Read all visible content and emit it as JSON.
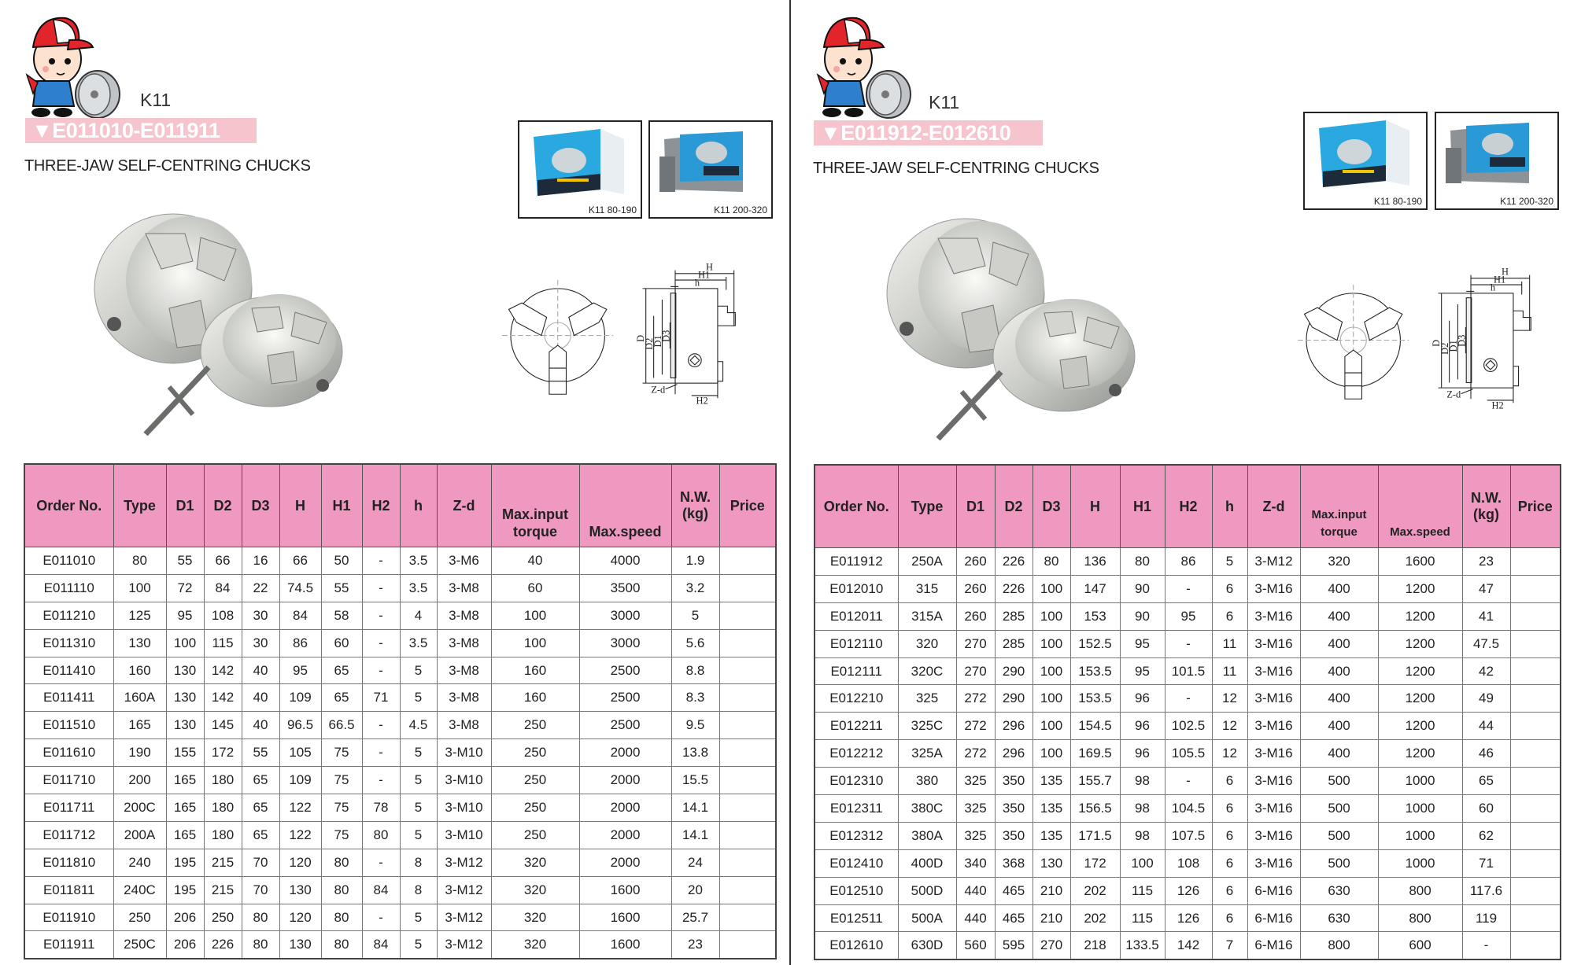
{
  "colors": {
    "header_pink": "#ef98c0",
    "banner_pink": "#f5c4cd",
    "divider": "#333333"
  },
  "pages": [
    {
      "series": "K11",
      "banner": "▼E011010-E011911",
      "subtitle": "THREE-JAW SELF-CENTRING CHUCKS",
      "boxes": [
        {
          "caption": "K11 80-190"
        },
        {
          "caption": "K11 200-320"
        }
      ],
      "drawing_labels": {
        "H": "H",
        "H1": "H1",
        "h": "h",
        "D": "D",
        "D2": "D2",
        "D1": "D1",
        "D3": "D3",
        "Zd": "Z-d",
        "H2": "H2"
      },
      "table": {
        "headers": [
          "Order No.",
          "Type",
          "D1",
          "D2",
          "D3",
          "H",
          "H1",
          "H2",
          "h",
          "Z-d",
          "Max.input torque",
          "Max.speed",
          "N.W. (kg)",
          "Price"
        ],
        "rows": [
          [
            "E011010",
            "80",
            "55",
            "66",
            "16",
            "66",
            "50",
            "-",
            "3.5",
            "3-M6",
            "40",
            "4000",
            "1.9",
            ""
          ],
          [
            "E011110",
            "100",
            "72",
            "84",
            "22",
            "74.5",
            "55",
            "-",
            "3.5",
            "3-M8",
            "60",
            "3500",
            "3.2",
            ""
          ],
          [
            "E011210",
            "125",
            "95",
            "108",
            "30",
            "84",
            "58",
            "-",
            "4",
            "3-M8",
            "100",
            "3000",
            "5",
            ""
          ],
          [
            "E011310",
            "130",
            "100",
            "115",
            "30",
            "86",
            "60",
            "-",
            "3.5",
            "3-M8",
            "100",
            "3000",
            "5.6",
            ""
          ],
          [
            "E011410",
            "160",
            "130",
            "142",
            "40",
            "95",
            "65",
            "-",
            "5",
            "3-M8",
            "160",
            "2500",
            "8.8",
            ""
          ],
          [
            "E011411",
            "160A",
            "130",
            "142",
            "40",
            "109",
            "65",
            "71",
            "5",
            "3-M8",
            "160",
            "2500",
            "8.3",
            ""
          ],
          [
            "E011510",
            "165",
            "130",
            "145",
            "40",
            "96.5",
            "66.5",
            "-",
            "4.5",
            "3-M8",
            "250",
            "2500",
            "9.5",
            ""
          ],
          [
            "E011610",
            "190",
            "155",
            "172",
            "55",
            "105",
            "75",
            "-",
            "5",
            "3-M10",
            "250",
            "2000",
            "13.8",
            ""
          ],
          [
            "E011710",
            "200",
            "165",
            "180",
            "65",
            "109",
            "75",
            "-",
            "5",
            "3-M10",
            "250",
            "2000",
            "15.5",
            ""
          ],
          [
            "E011711",
            "200C",
            "165",
            "180",
            "65",
            "122",
            "75",
            "78",
            "5",
            "3-M10",
            "250",
            "2000",
            "14.1",
            ""
          ],
          [
            "E011712",
            "200A",
            "165",
            "180",
            "65",
            "122",
            "75",
            "80",
            "5",
            "3-M10",
            "250",
            "2000",
            "14.1",
            ""
          ],
          [
            "E011810",
            "240",
            "195",
            "215",
            "70",
            "120",
            "80",
            "-",
            "8",
            "3-M12",
            "320",
            "2000",
            "24",
            ""
          ],
          [
            "E011811",
            "240C",
            "195",
            "215",
            "70",
            "130",
            "80",
            "84",
            "8",
            "3-M12",
            "320",
            "1600",
            "20",
            ""
          ],
          [
            "E011910",
            "250",
            "206",
            "250",
            "80",
            "120",
            "80",
            "-",
            "5",
            "3-M12",
            "320",
            "1600",
            "25.7",
            ""
          ],
          [
            "E011911",
            "250C",
            "206",
            "226",
            "80",
            "130",
            "80",
            "84",
            "5",
            "3-M12",
            "320",
            "1600",
            "23",
            ""
          ]
        ]
      }
    },
    {
      "series": "K11",
      "banner": "▼E011912-E012610",
      "subtitle": "THREE-JAW SELF-CENTRING CHUCKS",
      "boxes": [
        {
          "caption": "K11 80-190"
        },
        {
          "caption": "K11 200-320"
        }
      ],
      "drawing_labels": {
        "H": "H",
        "H1": "H1",
        "h": "h",
        "D": "D",
        "D2": "D2",
        "D1": "D1",
        "D3": "D3",
        "Zd": "Z-d",
        "H2": "H2"
      },
      "table": {
        "headers": [
          "Order No.",
          "Type",
          "D1",
          "D2",
          "D3",
          "H",
          "H1",
          "H2",
          "h",
          "Z-d",
          "Max.input torque",
          "Max.speed",
          "N.W. (kg)",
          "Price"
        ],
        "rows": [
          [
            "E011912",
            "250A",
            "260",
            "226",
            "80",
            "136",
            "80",
            "86",
            "5",
            "3-M12",
            "320",
            "1600",
            "23",
            ""
          ],
          [
            "E012010",
            "315",
            "260",
            "226",
            "100",
            "147",
            "90",
            "-",
            "6",
            "3-M16",
            "400",
            "1200",
            "47",
            ""
          ],
          [
            "E012011",
            "315A",
            "260",
            "285",
            "100",
            "153",
            "90",
            "95",
            "6",
            "3-M16",
            "400",
            "1200",
            "41",
            ""
          ],
          [
            "E012110",
            "320",
            "270",
            "285",
            "100",
            "152.5",
            "95",
            "-",
            "11",
            "3-M16",
            "400",
            "1200",
            "47.5",
            ""
          ],
          [
            "E012111",
            "320C",
            "270",
            "290",
            "100",
            "153.5",
            "95",
            "101.5",
            "11",
            "3-M16",
            "400",
            "1200",
            "42",
            ""
          ],
          [
            "E012210",
            "325",
            "272",
            "290",
            "100",
            "153.5",
            "96",
            "-",
            "12",
            "3-M16",
            "400",
            "1200",
            "49",
            ""
          ],
          [
            "E012211",
            "325C",
            "272",
            "296",
            "100",
            "154.5",
            "96",
            "102.5",
            "12",
            "3-M16",
            "400",
            "1200",
            "44",
            ""
          ],
          [
            "E012212",
            "325A",
            "272",
            "296",
            "100",
            "169.5",
            "96",
            "105.5",
            "12",
            "3-M16",
            "400",
            "1200",
            "46",
            ""
          ],
          [
            "E012310",
            "380",
            "325",
            "350",
            "135",
            "155.7",
            "98",
            "-",
            "6",
            "3-M16",
            "500",
            "1000",
            "65",
            ""
          ],
          [
            "E012311",
            "380C",
            "325",
            "350",
            "135",
            "156.5",
            "98",
            "104.5",
            "6",
            "3-M16",
            "500",
            "1000",
            "60",
            ""
          ],
          [
            "E012312",
            "380A",
            "325",
            "350",
            "135",
            "171.5",
            "98",
            "107.5",
            "6",
            "3-M16",
            "500",
            "1000",
            "62",
            ""
          ],
          [
            "E012410",
            "400D",
            "340",
            "368",
            "130",
            "172",
            "100",
            "108",
            "6",
            "3-M16",
            "500",
            "1000",
            "71",
            ""
          ],
          [
            "E012510",
            "500D",
            "440",
            "465",
            "210",
            "202",
            "115",
            "126",
            "6",
            "6-M16",
            "630",
            "800",
            "117.6",
            ""
          ],
          [
            "E012511",
            "500A",
            "440",
            "465",
            "210",
            "202",
            "115",
            "126",
            "6",
            "6-M16",
            "630",
            "800",
            "119",
            ""
          ],
          [
            "E012610",
            "630D",
            "560",
            "595",
            "270",
            "218",
            "133.5",
            "142",
            "7",
            "6-M16",
            "800",
            "600",
            "-",
            ""
          ]
        ]
      }
    }
  ]
}
